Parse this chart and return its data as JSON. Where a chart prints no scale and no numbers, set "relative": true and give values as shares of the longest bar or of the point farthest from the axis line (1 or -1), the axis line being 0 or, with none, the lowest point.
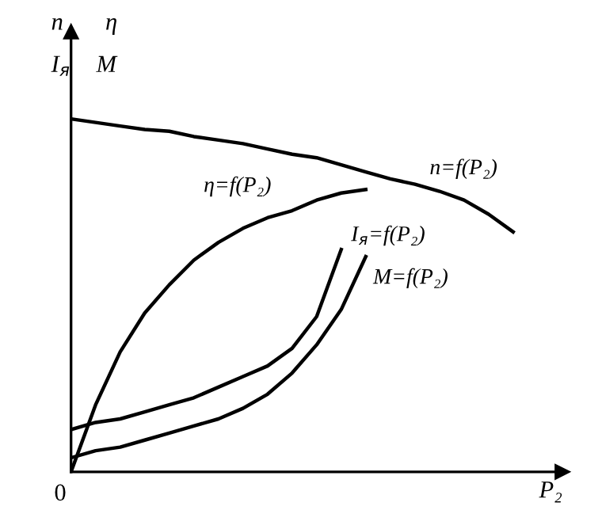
{
  "chart_data": {
    "type": "line",
    "relative": true,
    "xlabel": "P₂",
    "categories": [
      null,
      null,
      null,
      null,
      null,
      null,
      null,
      null,
      null,
      null,
      null,
      null,
      null,
      null,
      null,
      null,
      null,
      null,
      null
    ],
    "series": [
      {
        "name": "n=f(P₂)",
        "color": "#000000",
        "values": [
          1,
          0.99,
          0.98,
          0.97,
          0.965,
          0.95,
          0.94,
          0.93,
          0.915,
          0.9,
          0.89,
          0.87,
          0.85,
          0.83,
          0.815,
          0.795,
          0.77,
          0.73,
          0.68
        ]
      },
      {
        "name": "η=f(P₂)",
        "color": "#000000",
        "values": [
          0,
          0.19,
          0.34,
          0.45,
          0.53,
          0.6,
          0.65,
          0.69,
          0.72,
          0.74,
          0.77,
          0.79,
          0.8,
          null,
          null,
          null,
          null,
          null,
          null
        ]
      },
      {
        "name": "I$_{я}$=f(P₂)",
        "color": "#000000",
        "values": [
          0.12,
          0.14,
          0.15,
          0.17,
          0.19,
          0.21,
          0.24,
          0.27,
          0.3,
          0.35,
          0.44,
          0.63,
          null,
          null,
          null,
          null,
          null,
          null,
          null
        ]
      },
      {
        "name": "M=f(P₂)",
        "color": "#000000",
        "values": [
          0.04,
          0.06,
          0.07,
          0.09,
          0.11,
          0.13,
          0.15,
          0.18,
          0.22,
          0.28,
          0.36,
          0.46,
          0.61,
          null,
          null,
          null,
          null,
          null,
          null
        ]
      }
    ],
    "annotations": [
      "n",
      "η",
      "I$_{я}$",
      "M",
      "0"
    ],
    "legend": false,
    "marker": "none",
    "line_style": "solid"
  }
}
